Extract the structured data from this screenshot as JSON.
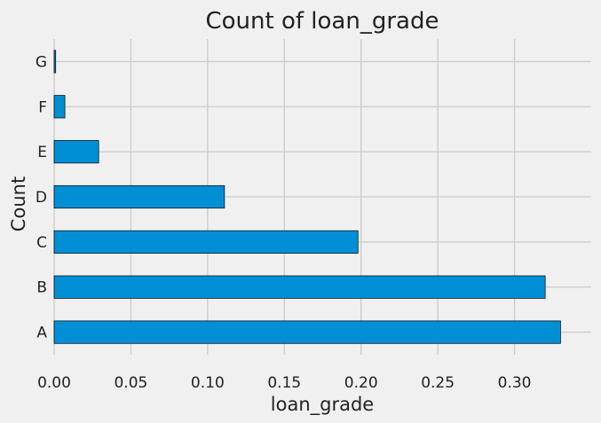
{
  "chart_data": {
    "type": "bar",
    "orientation": "horizontal",
    "title": "Count of loan_grade",
    "xlabel": "loan_grade",
    "ylabel": "Count",
    "categories": [
      "A",
      "B",
      "C",
      "D",
      "E",
      "F",
      "G"
    ],
    "values": [
      0.33,
      0.32,
      0.198,
      0.111,
      0.029,
      0.007,
      0.001
    ],
    "xlim": [
      0,
      0.35
    ],
    "xticks": [
      0.0,
      0.05,
      0.1,
      0.15,
      0.2,
      0.25,
      0.3
    ],
    "xtick_labels": [
      "0.00",
      "0.05",
      "0.10",
      "0.15",
      "0.20",
      "0.25",
      "0.30"
    ],
    "grid": true,
    "bar_color": "#008fd5",
    "edge_color": "#000000",
    "grid_color": "#cbcbcb",
    "background_color": "#f0f0f0"
  }
}
